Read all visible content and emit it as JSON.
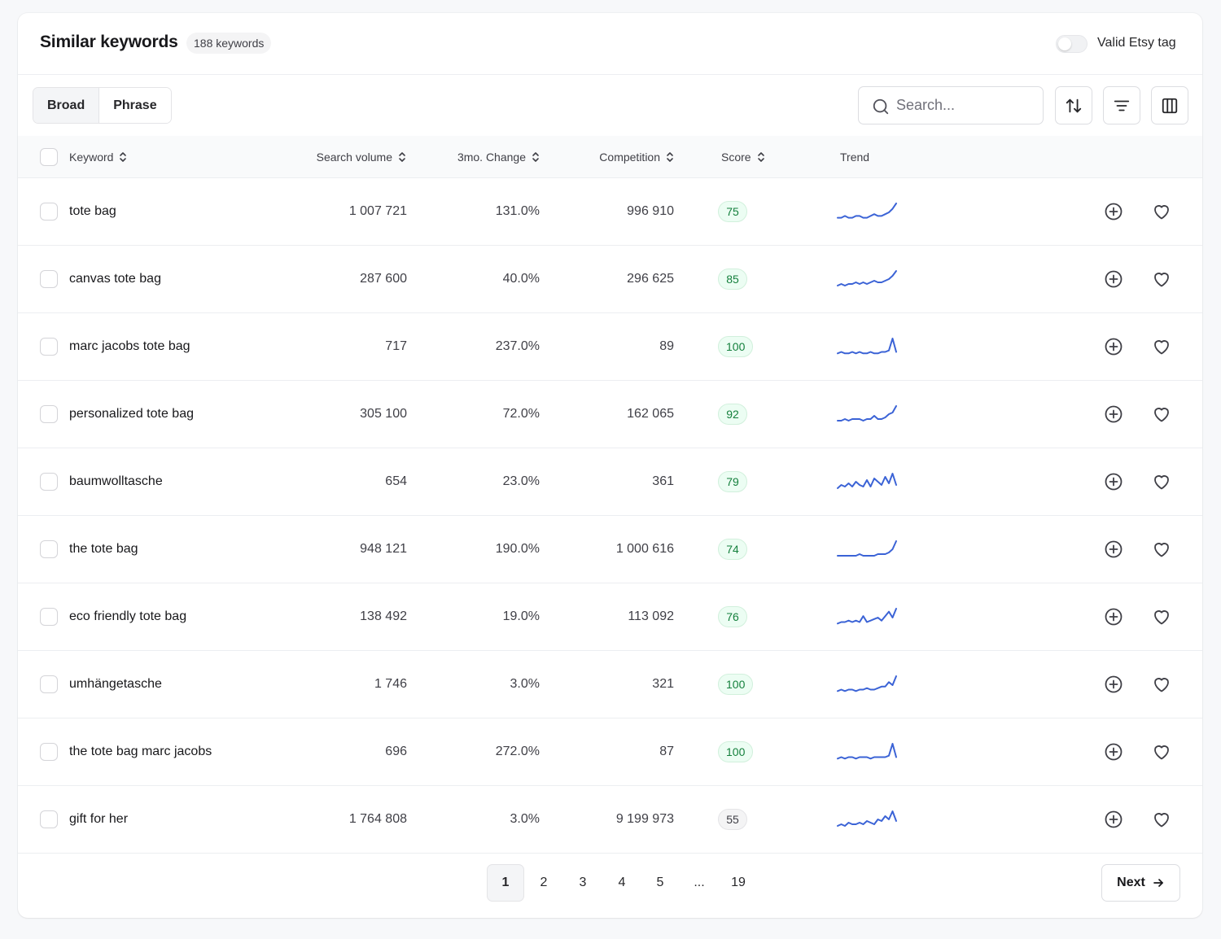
{
  "header": {
    "title": "Similar keywords",
    "count_badge": "188 keywords",
    "toggle_label": "Valid Etsy tag"
  },
  "toolbar": {
    "tabs": [
      "Broad",
      "Phrase"
    ],
    "active_tab": "Broad",
    "search_placeholder": "Search...",
    "search_value": ""
  },
  "table": {
    "columns": {
      "keyword": "Keyword",
      "search_volume": "Search volume",
      "change": "3mo. Change",
      "competition": "Competition",
      "score": "Score",
      "trend": "Trend"
    },
    "rows": [
      {
        "keyword": "tote bag",
        "volume": "1 007 721",
        "change": "131.0%",
        "competition": "996 910",
        "score": "75",
        "trend": [
          2,
          2,
          3,
          2,
          2,
          3,
          3,
          2,
          2,
          3,
          4,
          3,
          3,
          4,
          5,
          7,
          10
        ]
      },
      {
        "keyword": "canvas tote bag",
        "volume": "287 600",
        "change": "40.0%",
        "competition": "296 625",
        "score": "85",
        "trend": [
          2,
          3,
          2,
          3,
          3,
          4,
          3,
          4,
          3,
          4,
          5,
          4,
          4,
          5,
          6,
          8,
          11
        ]
      },
      {
        "keyword": "marc jacobs tote bag",
        "volume": "717",
        "change": "237.0%",
        "competition": "89",
        "score": "100",
        "trend": [
          2,
          3,
          2,
          2,
          3,
          2,
          3,
          2,
          2,
          3,
          2,
          2,
          3,
          3,
          4,
          12,
          3
        ]
      },
      {
        "keyword": "personalized tote bag",
        "volume": "305 100",
        "change": "72.0%",
        "competition": "162 065",
        "score": "92",
        "trend": [
          2,
          2,
          3,
          2,
          3,
          3,
          3,
          2,
          3,
          3,
          5,
          3,
          3,
          4,
          6,
          7,
          11
        ]
      },
      {
        "keyword": "baumwolltasche",
        "volume": "654",
        "change": "23.0%",
        "competition": "361",
        "score": "79",
        "trend": [
          2,
          4,
          3,
          5,
          3,
          6,
          4,
          3,
          7,
          3,
          8,
          6,
          4,
          9,
          5,
          11,
          4
        ]
      },
      {
        "keyword": "the tote bag",
        "volume": "948 121",
        "change": "190.0%",
        "competition": "1 000 616",
        "score": "74",
        "trend": [
          2,
          2,
          2,
          2,
          2,
          2,
          3,
          2,
          2,
          2,
          2,
          3,
          3,
          3,
          4,
          6,
          11
        ]
      },
      {
        "keyword": "eco friendly tote bag",
        "volume": "138 492",
        "change": "19.0%",
        "competition": "113 092",
        "score": "76",
        "trend": [
          2,
          3,
          3,
          4,
          3,
          4,
          3,
          7,
          3,
          4,
          5,
          6,
          4,
          7,
          10,
          6,
          12
        ]
      },
      {
        "keyword": "umhängetasche",
        "volume": "1 746",
        "change": "3.0%",
        "competition": "321",
        "score": "100",
        "trend": [
          2,
          3,
          2,
          3,
          3,
          2,
          3,
          3,
          4,
          3,
          3,
          4,
          5,
          5,
          8,
          6,
          12
        ]
      },
      {
        "keyword": "the tote bag marc jacobs",
        "volume": "696",
        "change": "272.0%",
        "competition": "87",
        "score": "100",
        "trend": [
          2,
          3,
          2,
          3,
          3,
          2,
          3,
          3,
          3,
          2,
          3,
          3,
          3,
          3,
          4,
          12,
          3
        ]
      },
      {
        "keyword": "gift for her",
        "volume": "1 764 808",
        "change": "3.0%",
        "competition": "9 199 973",
        "score": "55",
        "trend": [
          2,
          3,
          2,
          4,
          3,
          3,
          4,
          3,
          5,
          4,
          3,
          6,
          5,
          8,
          6,
          11,
          5
        ]
      }
    ]
  },
  "pagination": {
    "pages": [
      "1",
      "2",
      "3",
      "4",
      "5",
      "...",
      "19"
    ],
    "current": "1",
    "next_label": "Next"
  },
  "colors": {
    "trend_line": "#3b63d6",
    "score_good_text": "#15803d",
    "score_good_bg": "#ecfdf3"
  }
}
